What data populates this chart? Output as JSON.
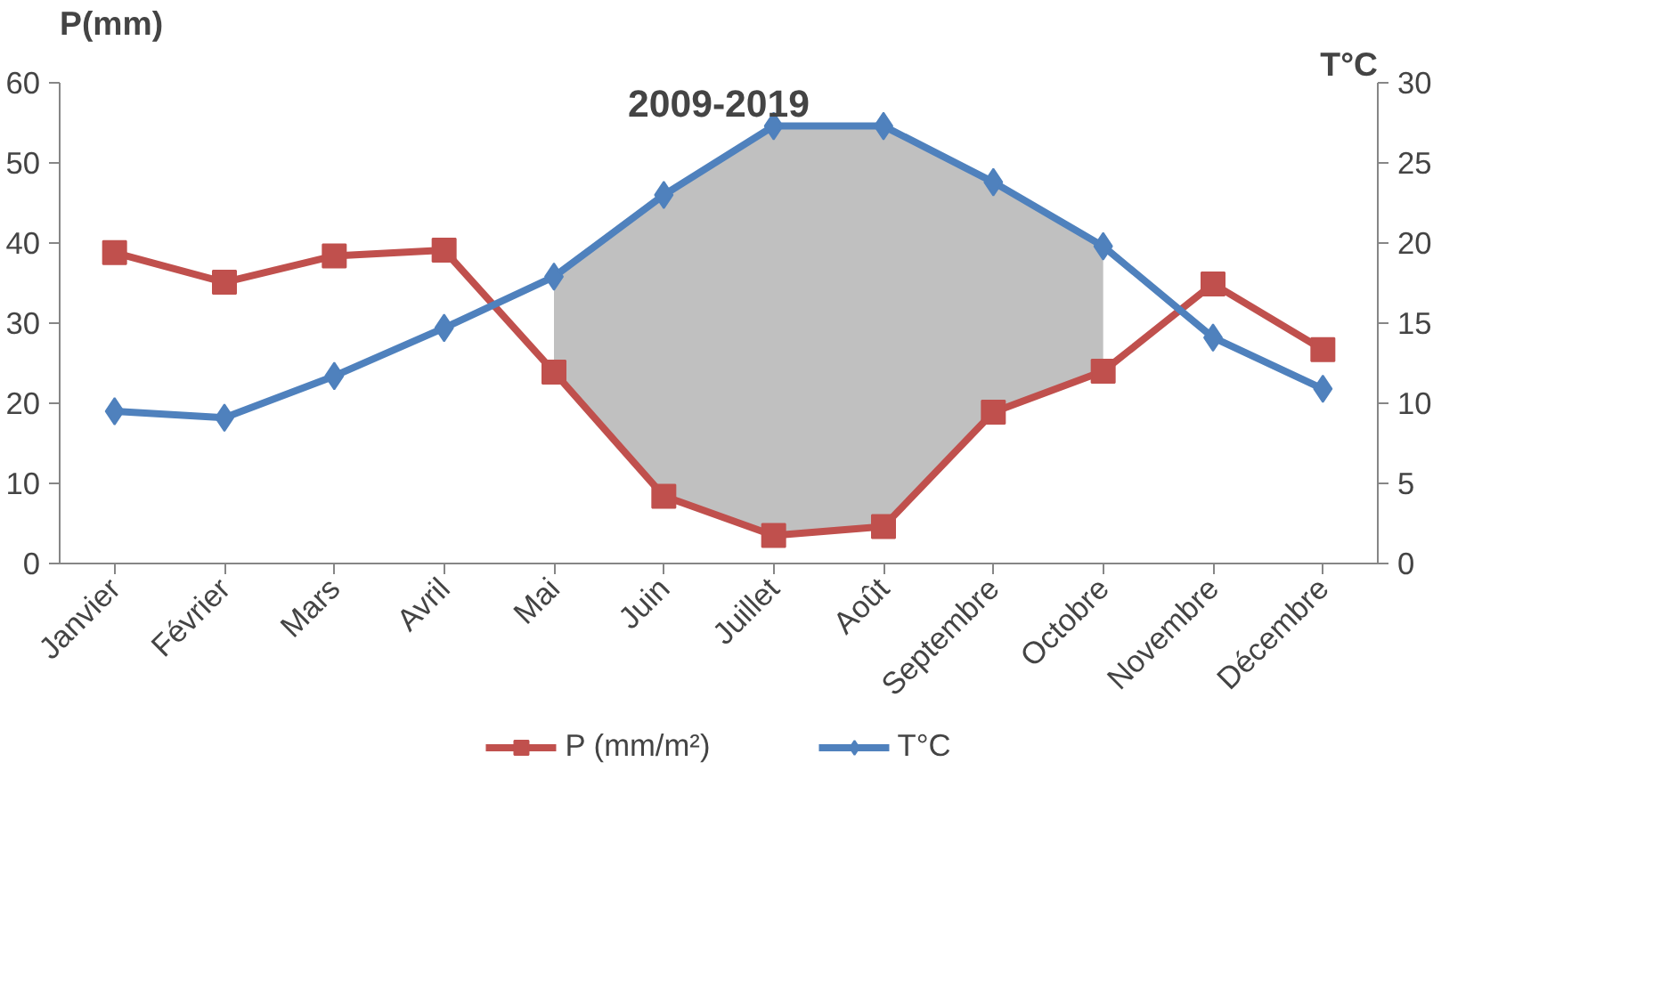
{
  "chart_data": {
    "type": "line",
    "title": "2009-2019",
    "ylabel": "P(mm)",
    "y2label": "T°C",
    "categories": [
      "Janvier",
      "Février",
      "Mars",
      "Avril",
      "Mai",
      "Juin",
      "Juillet",
      "Août",
      "Septembre",
      "Octobre",
      "Novembre",
      "Décembre"
    ],
    "series": [
      {
        "name": "P (mm/m²)",
        "color": "#c0504d",
        "marker": "square",
        "values": [
          38.8,
          35.1,
          38.4,
          39.1,
          23.9,
          8.4,
          3.5,
          4.6,
          18.9,
          24.0,
          34.9,
          26.7
        ],
        "lower": [
          null,
          null,
          null,
          null,
          23.9,
          8.4,
          3.5,
          4.6,
          18.9,
          24.0,
          null,
          null
        ],
        "upper": [
          null,
          null,
          null,
          null,
          35.8,
          46.0,
          54.6,
          54.6,
          47.6,
          39.6,
          null,
          null
        ]
      },
      {
        "name": "T°C",
        "color": "#4f81bd",
        "marker": "diamond",
        "axis": "y2",
        "values": [
          9.5,
          9.1,
          11.7,
          14.7,
          17.9,
          23.0,
          27.3,
          27.3,
          23.8,
          19.8,
          14.1,
          10.9
        ]
      }
    ],
    "ylim": [
      0,
      60
    ],
    "yticks": [
      0,
      10,
      20,
      30,
      40,
      50,
      60
    ],
    "y2lim": [
      0,
      30
    ],
    "y2ticks": [
      0,
      5,
      10,
      15,
      20,
      25,
      30
    ],
    "grid": false,
    "legend": "bottom",
    "line_style": "solid"
  }
}
